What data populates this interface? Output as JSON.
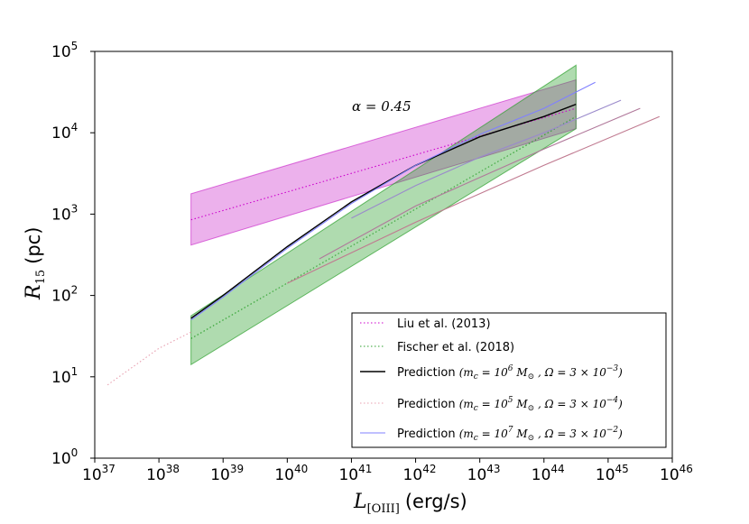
{
  "chart_data": {
    "type": "line",
    "title": "",
    "xlabel": "L",
    "xlabel_sub": "[OIII]",
    "xlabel_unit": "(erg/s)",
    "ylabel": "R",
    "ylabel_sub": "15",
    "ylabel_unit": "(pc)",
    "xscale": "log",
    "yscale": "log",
    "xlim_log10": [
      37,
      46
    ],
    "ylim_log10": [
      0,
      5
    ],
    "xticks": [
      {
        "base": "10",
        "exp": "37",
        "pow": 37
      },
      {
        "base": "10",
        "exp": "38",
        "pow": 38
      },
      {
        "base": "10",
        "exp": "39",
        "pow": 39
      },
      {
        "base": "10",
        "exp": "40",
        "pow": 40
      },
      {
        "base": "10",
        "exp": "41",
        "pow": 41
      },
      {
        "base": "10",
        "exp": "42",
        "pow": 42
      },
      {
        "base": "10",
        "exp": "43",
        "pow": 43
      },
      {
        "base": "10",
        "exp": "44",
        "pow": 44
      },
      {
        "base": "10",
        "exp": "45",
        "pow": 45
      },
      {
        "base": "10",
        "exp": "46",
        "pow": 46
      }
    ],
    "yticks": [
      {
        "base": "10",
        "exp": "0",
        "pow": 0
      },
      {
        "base": "10",
        "exp": "1",
        "pow": 1
      },
      {
        "base": "10",
        "exp": "2",
        "pow": 2
      },
      {
        "base": "10",
        "exp": "3",
        "pow": 3
      },
      {
        "base": "10",
        "exp": "4",
        "pow": 4
      },
      {
        "base": "10",
        "exp": "5",
        "pow": 5
      }
    ],
    "annotation": "α = 0.45",
    "bands": [
      {
        "name": "Liu et al. (2013) range",
        "color": "#cc33cc",
        "opacity": 0.38,
        "x_log": [
          38.5,
          44.5
        ],
        "lower_log": [
          2.62,
          4.05
        ],
        "upper_log": [
          3.25,
          4.65
        ]
      },
      {
        "name": "Fischer et al. (2018) range",
        "color": "#2ca02c",
        "opacity": 0.38,
        "x_log": [
          38.5,
          44.5
        ],
        "lower_log": [
          1.15,
          4.05
        ],
        "upper_log": [
          1.75,
          4.83
        ]
      }
    ],
    "series": [
      {
        "name": "Liu et al. (2013)",
        "color": "#cc00cc",
        "style": "dotted",
        "x_log": [
          38.5,
          44.5
        ],
        "y_log": [
          2.93,
          4.3
        ]
      },
      {
        "name": "Fischer et al. (2018)",
        "color": "#2ca02c",
        "style": "dotted",
        "x_log": [
          38.5,
          44.5
        ],
        "y_log": [
          1.47,
          4.2
        ]
      },
      {
        "name": "Prediction (m_c = 10^6 M_sun, Ω = 3×10^-3)",
        "color": "#000000",
        "style": "solid",
        "x_log": [
          38.5,
          39,
          40,
          41,
          42,
          43,
          44,
          44.5
        ],
        "y_log": [
          1.72,
          2.0,
          2.6,
          3.15,
          3.6,
          3.95,
          4.2,
          4.35
        ]
      },
      {
        "name": "Prediction (m_c = 10^5 M_sun, Ω = 3×10^-4)",
        "color": "#e8a0b0",
        "style": "dotted",
        "x_log": [
          37.2,
          38,
          38.5
        ],
        "y_log": [
          0.9,
          1.35,
          1.55
        ]
      },
      {
        "name": "Prediction (m_c = 10^7 M_sun, Ω = 3×10^-2)",
        "color": "#8080ff",
        "style": "solid",
        "x_log": [
          38.5,
          39,
          40,
          41,
          42,
          43,
          44,
          44.8
        ],
        "y_log": [
          1.7,
          1.98,
          2.58,
          3.13,
          3.6,
          3.98,
          4.3,
          4.62
        ]
      },
      {
        "name": "Prediction curve",
        "color": "#9a8acb",
        "style": "solid",
        "x_log": [
          41,
          42,
          43,
          44,
          45.2
        ],
        "y_log": [
          2.95,
          3.35,
          3.7,
          4.0,
          4.4
        ]
      },
      {
        "name": "Prediction curve",
        "color": "#b0789a",
        "style": "solid",
        "x_log": [
          40.5,
          42,
          43,
          44,
          45.5
        ],
        "y_log": [
          2.45,
          3.1,
          3.45,
          3.8,
          4.3
        ]
      },
      {
        "name": "Prediction curve",
        "color": "#c07a90",
        "style": "solid",
        "x_log": [
          40.0,
          42,
          43,
          44,
          45.8
        ],
        "y_log": [
          2.15,
          2.9,
          3.25,
          3.6,
          4.2
        ]
      }
    ],
    "legend_position": "bottom-right"
  },
  "legend": {
    "entries": [
      {
        "label": "Liu et al. (2013)",
        "color": "#cc00cc",
        "style": "dotted"
      },
      {
        "label": "Fischer et al. (2018)",
        "color": "#2ca02c",
        "style": "dotted"
      },
      {
        "label": "Prediction",
        "math": "(m",
        "sub": "c",
        "eq": " = 10",
        "expo": "6",
        "mass": " M",
        "msub": "⊙",
        "omega": " , Ω = 3 × 10",
        "oexp": "−3",
        "close": ")",
        "color": "#000000",
        "style": "solid"
      },
      {
        "label": "Prediction",
        "math": "(m",
        "sub": "c",
        "eq": " = 10",
        "expo": "5",
        "mass": " M",
        "msub": "⊙",
        "omega": " , Ω = 3 × 10",
        "oexp": "−4",
        "close": ")",
        "color": "#e8a0b0",
        "style": "dotted"
      },
      {
        "label": "Prediction",
        "math": "(m",
        "sub": "c",
        "eq": " = 10",
        "expo": "7",
        "mass": " M",
        "msub": "⊙",
        "omega": " , Ω = 3 × 10",
        "oexp": "−2",
        "close": ")",
        "color": "#8080ff",
        "style": "solid"
      }
    ]
  }
}
